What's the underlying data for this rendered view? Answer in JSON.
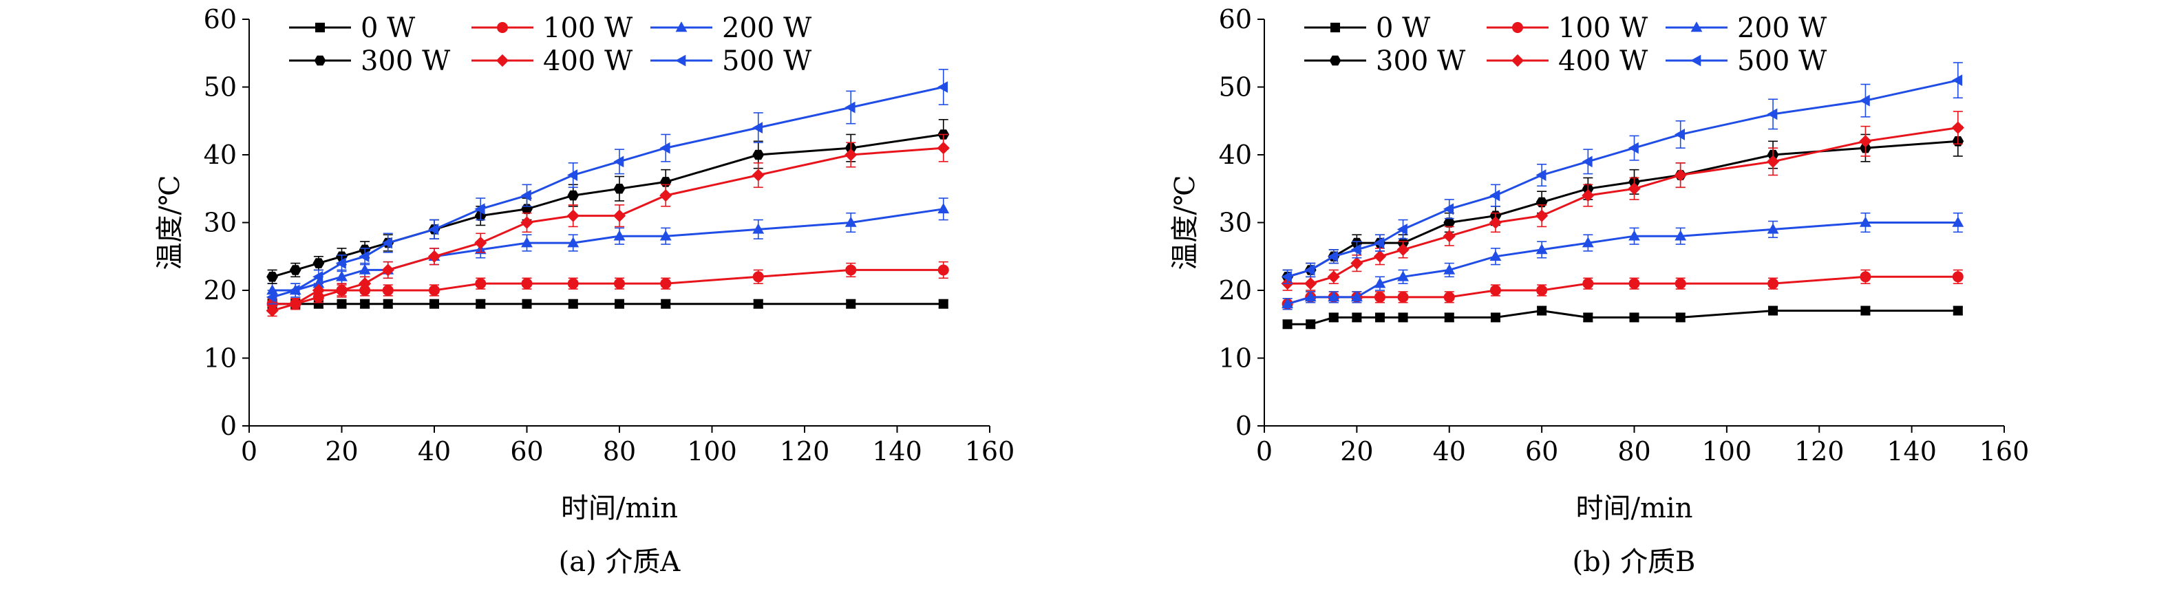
{
  "figure": {
    "panels": [
      {
        "caption": "(a) 介质A"
      },
      {
        "caption": "(b) 介质B"
      }
    ]
  },
  "chart_data": [
    {
      "type": "line",
      "title": "",
      "caption": "(a) 介质A",
      "xlabel": "时间/min",
      "ylabel": "温度/℃",
      "xlim": [
        0,
        160
      ],
      "ylim": [
        0,
        60
      ],
      "xticks": [
        0,
        20,
        40,
        60,
        80,
        100,
        120,
        140,
        160
      ],
      "yticks": [
        0,
        10,
        20,
        30,
        40,
        50,
        60
      ],
      "grid": false,
      "legend_position": "top-left",
      "x": [
        5,
        10,
        15,
        20,
        25,
        30,
        40,
        50,
        60,
        70,
        80,
        90,
        110,
        130,
        150
      ],
      "series": [
        {
          "name": "0 W",
          "color": "#000000",
          "marker": "square",
          "values": [
            18,
            18,
            18,
            18,
            18,
            18,
            18,
            18,
            18,
            18,
            18,
            18,
            18,
            18,
            18
          ],
          "errors": [
            0.6,
            0.6,
            0.6,
            0.6,
            0.6,
            0.6,
            0.6,
            0.6,
            0.6,
            0.6,
            0.6,
            0.6,
            0.6,
            0.6,
            0.6
          ]
        },
        {
          "name": "100 W",
          "color": "#e8141b",
          "marker": "circle",
          "values": [
            18,
            18,
            19,
            20,
            20,
            20,
            20,
            21,
            21,
            21,
            21,
            21,
            22,
            23,
            23
          ],
          "errors": [
            0.8,
            0.8,
            0.8,
            0.8,
            0.8,
            0.8,
            0.8,
            0.8,
            0.8,
            0.8,
            0.8,
            0.8,
            1.0,
            1.0,
            1.2
          ]
        },
        {
          "name": "200 W",
          "color": "#1f4de6",
          "marker": "triangle-up",
          "values": [
            20,
            20,
            21,
            22,
            23,
            23,
            25,
            26,
            27,
            27,
            28,
            28,
            29,
            30,
            32
          ],
          "errors": [
            1.0,
            1.0,
            1.0,
            1.0,
            1.0,
            1.2,
            1.2,
            1.2,
            1.2,
            1.2,
            1.2,
            1.2,
            1.4,
            1.4,
            1.6
          ]
        },
        {
          "name": "300 W",
          "color": "#000000",
          "marker": "hexagon",
          "values": [
            22,
            23,
            24,
            25,
            26,
            27,
            29,
            31,
            32,
            34,
            35,
            36,
            40,
            41,
            43
          ],
          "errors": [
            1.0,
            1.0,
            1.0,
            1.2,
            1.2,
            1.2,
            1.4,
            1.4,
            1.6,
            1.6,
            1.8,
            1.8,
            2.0,
            2.0,
            2.2
          ]
        },
        {
          "name": "400 W",
          "color": "#e8141b",
          "marker": "diamond",
          "values": [
            17,
            18,
            20,
            20,
            21,
            23,
            25,
            27,
            30,
            31,
            31,
            34,
            37,
            40,
            41
          ],
          "errors": [
            0.8,
            0.8,
            1.0,
            1.0,
            1.0,
            1.2,
            1.2,
            1.4,
            1.4,
            1.6,
            1.6,
            1.6,
            1.8,
            1.8,
            2.0
          ]
        },
        {
          "name": "500 W",
          "color": "#1f4de6",
          "marker": "triangle-left",
          "values": [
            19,
            20,
            22,
            24,
            25,
            27,
            29,
            32,
            34,
            37,
            39,
            41,
            44,
            47,
            50
          ],
          "errors": [
            1.0,
            1.0,
            1.0,
            1.2,
            1.2,
            1.4,
            1.4,
            1.6,
            1.6,
            1.8,
            1.8,
            2.0,
            2.2,
            2.4,
            2.6
          ]
        }
      ]
    },
    {
      "type": "line",
      "title": "",
      "caption": "(b) 介质B",
      "xlabel": "时间/min",
      "ylabel": "温度/℃",
      "xlim": [
        0,
        160
      ],
      "ylim": [
        0,
        60
      ],
      "xticks": [
        0,
        20,
        40,
        60,
        80,
        100,
        120,
        140,
        160
      ],
      "yticks": [
        0,
        10,
        20,
        30,
        40,
        50,
        60
      ],
      "grid": false,
      "legend_position": "top-left",
      "x": [
        5,
        10,
        15,
        20,
        25,
        30,
        40,
        50,
        60,
        70,
        80,
        90,
        110,
        130,
        150
      ],
      "series": [
        {
          "name": "0 W",
          "color": "#000000",
          "marker": "square",
          "values": [
            15,
            15,
            16,
            16,
            16,
            16,
            16,
            16,
            17,
            16,
            16,
            16,
            17,
            17,
            17
          ],
          "errors": [
            0.6,
            0.6,
            0.6,
            0.6,
            0.6,
            0.6,
            0.6,
            0.6,
            0.6,
            0.6,
            0.6,
            0.6,
            0.6,
            0.6,
            0.6
          ]
        },
        {
          "name": "100 W",
          "color": "#e8141b",
          "marker": "circle",
          "values": [
            18,
            19,
            19,
            19,
            19,
            19,
            19,
            20,
            20,
            21,
            21,
            21,
            21,
            22,
            22
          ],
          "errors": [
            0.8,
            0.8,
            0.8,
            0.8,
            0.8,
            0.8,
            0.8,
            0.8,
            0.8,
            0.8,
            0.8,
            0.8,
            0.8,
            1.0,
            1.0
          ]
        },
        {
          "name": "200 W",
          "color": "#1f4de6",
          "marker": "triangle-up",
          "values": [
            18,
            19,
            19,
            19,
            21,
            22,
            23,
            25,
            26,
            27,
            28,
            28,
            29,
            30,
            30
          ],
          "errors": [
            0.8,
            0.8,
            0.8,
            0.8,
            1.0,
            1.0,
            1.0,
            1.2,
            1.2,
            1.2,
            1.2,
            1.2,
            1.2,
            1.4,
            1.4
          ]
        },
        {
          "name": "300 W",
          "color": "#000000",
          "marker": "hexagon",
          "values": [
            22,
            23,
            25,
            27,
            27,
            27,
            30,
            31,
            33,
            35,
            36,
            37,
            40,
            41,
            42
          ],
          "errors": [
            1.0,
            1.0,
            1.0,
            1.2,
            1.2,
            1.2,
            1.4,
            1.4,
            1.6,
            1.6,
            1.8,
            1.8,
            2.0,
            2.0,
            2.2
          ]
        },
        {
          "name": "400 W",
          "color": "#e8141b",
          "marker": "diamond",
          "values": [
            21,
            21,
            22,
            24,
            25,
            26,
            28,
            30,
            31,
            34,
            35,
            37,
            39,
            42,
            44
          ],
          "errors": [
            1.0,
            1.0,
            1.0,
            1.2,
            1.2,
            1.2,
            1.4,
            1.4,
            1.6,
            1.6,
            1.6,
            1.8,
            2.0,
            2.2,
            2.4
          ]
        },
        {
          "name": "500 W",
          "color": "#1f4de6",
          "marker": "triangle-left",
          "values": [
            22,
            23,
            25,
            26,
            27,
            29,
            32,
            34,
            37,
            39,
            41,
            43,
            46,
            48,
            51
          ],
          "errors": [
            1.0,
            1.0,
            1.0,
            1.2,
            1.2,
            1.4,
            1.4,
            1.6,
            1.6,
            1.8,
            1.8,
            2.0,
            2.2,
            2.4,
            2.6
          ]
        }
      ]
    }
  ]
}
